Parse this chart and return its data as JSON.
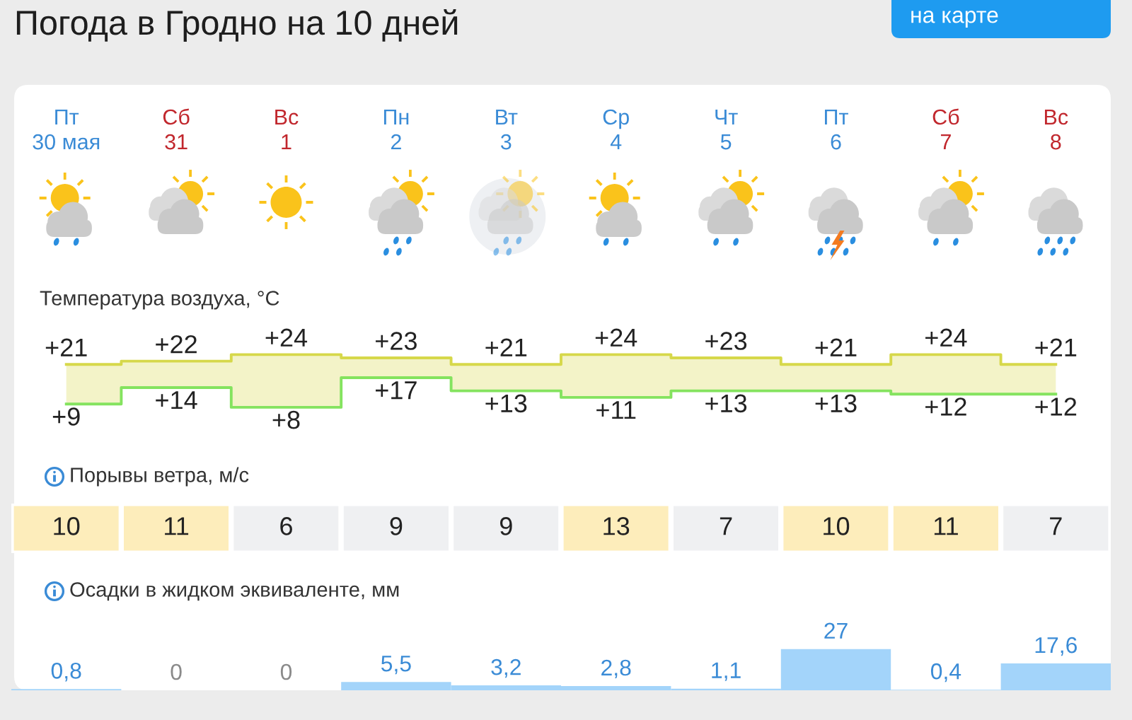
{
  "chart_data": [
    {
      "type": "step",
      "title": "Погода в Гродно на 10 дней",
      "subtitle": "Температура воздуха, °C",
      "annotations": [
        "на карте"
      ],
      "categories": [
        "Пт\n30 мая",
        "Сб\n31",
        "Вс\n1",
        "Пн\n2",
        "Вт\n3",
        "Ср\n4",
        "Чт\n5",
        "Пт\n6",
        "Сб\n7",
        "Вс\n8"
      ],
      "series": [
        {
          "color": "#d6d84a",
          "values": [
            21,
            22,
            24,
            23,
            21,
            24,
            23,
            21,
            24,
            21
          ],
          "value_labels": [
            "+21",
            "+22",
            "+24",
            "+23",
            "+21",
            "+24",
            "+23",
            "+21",
            "+24",
            "+21"
          ],
          "lower": [
            9,
            14,
            8,
            17,
            13,
            11,
            13,
            13,
            12,
            12
          ],
          "upper": [
            21,
            22,
            24,
            23,
            21,
            24,
            23,
            21,
            24,
            21
          ]
        },
        {
          "color": "#84e35f",
          "values": [
            9,
            14,
            8,
            17,
            13,
            11,
            13,
            13,
            12,
            12
          ],
          "value_labels": [
            "+9",
            "+14",
            "+8",
            "+17",
            "+13",
            "+11",
            "+13",
            "+13",
            "+12",
            "+12"
          ]
        }
      ],
      "tick_labels": "x"
    },
    {
      "type": "heatmap",
      "title": "Порывы ветра, м/с",
      "categories": [
        null,
        null,
        null,
        null,
        null,
        null,
        null,
        null,
        null,
        null
      ],
      "y_categories": [
        null
      ],
      "cells": [
        [
          10,
          11,
          6,
          9,
          9,
          13,
          7,
          10,
          11,
          7
        ]
      ],
      "colors": [
        "#fdedbb",
        "#fdedbb",
        "#eff0f2",
        "#eff0f2",
        "#eff0f2",
        "#fdedbb",
        "#eff0f2",
        "#fdedbb",
        "#fdedbb",
        "#eff0f2"
      ],
      "data_labels": true
    },
    {
      "type": "bar",
      "title": "Осадки в жидком эквиваленте, мм",
      "categories": [
        null,
        null,
        null,
        null,
        null,
        null,
        null,
        null,
        null,
        null
      ],
      "values": [
        0.8,
        0,
        0,
        5.5,
        3.2,
        2.8,
        1.1,
        27,
        0.4,
        17.6
      ],
      "value_labels": [
        "0,8",
        "0",
        "0",
        "5,5",
        "3,2",
        "2,8",
        "1,1",
        "27",
        "0,4",
        "17,6"
      ],
      "color": "#a3d4fa"
    }
  ]
}
